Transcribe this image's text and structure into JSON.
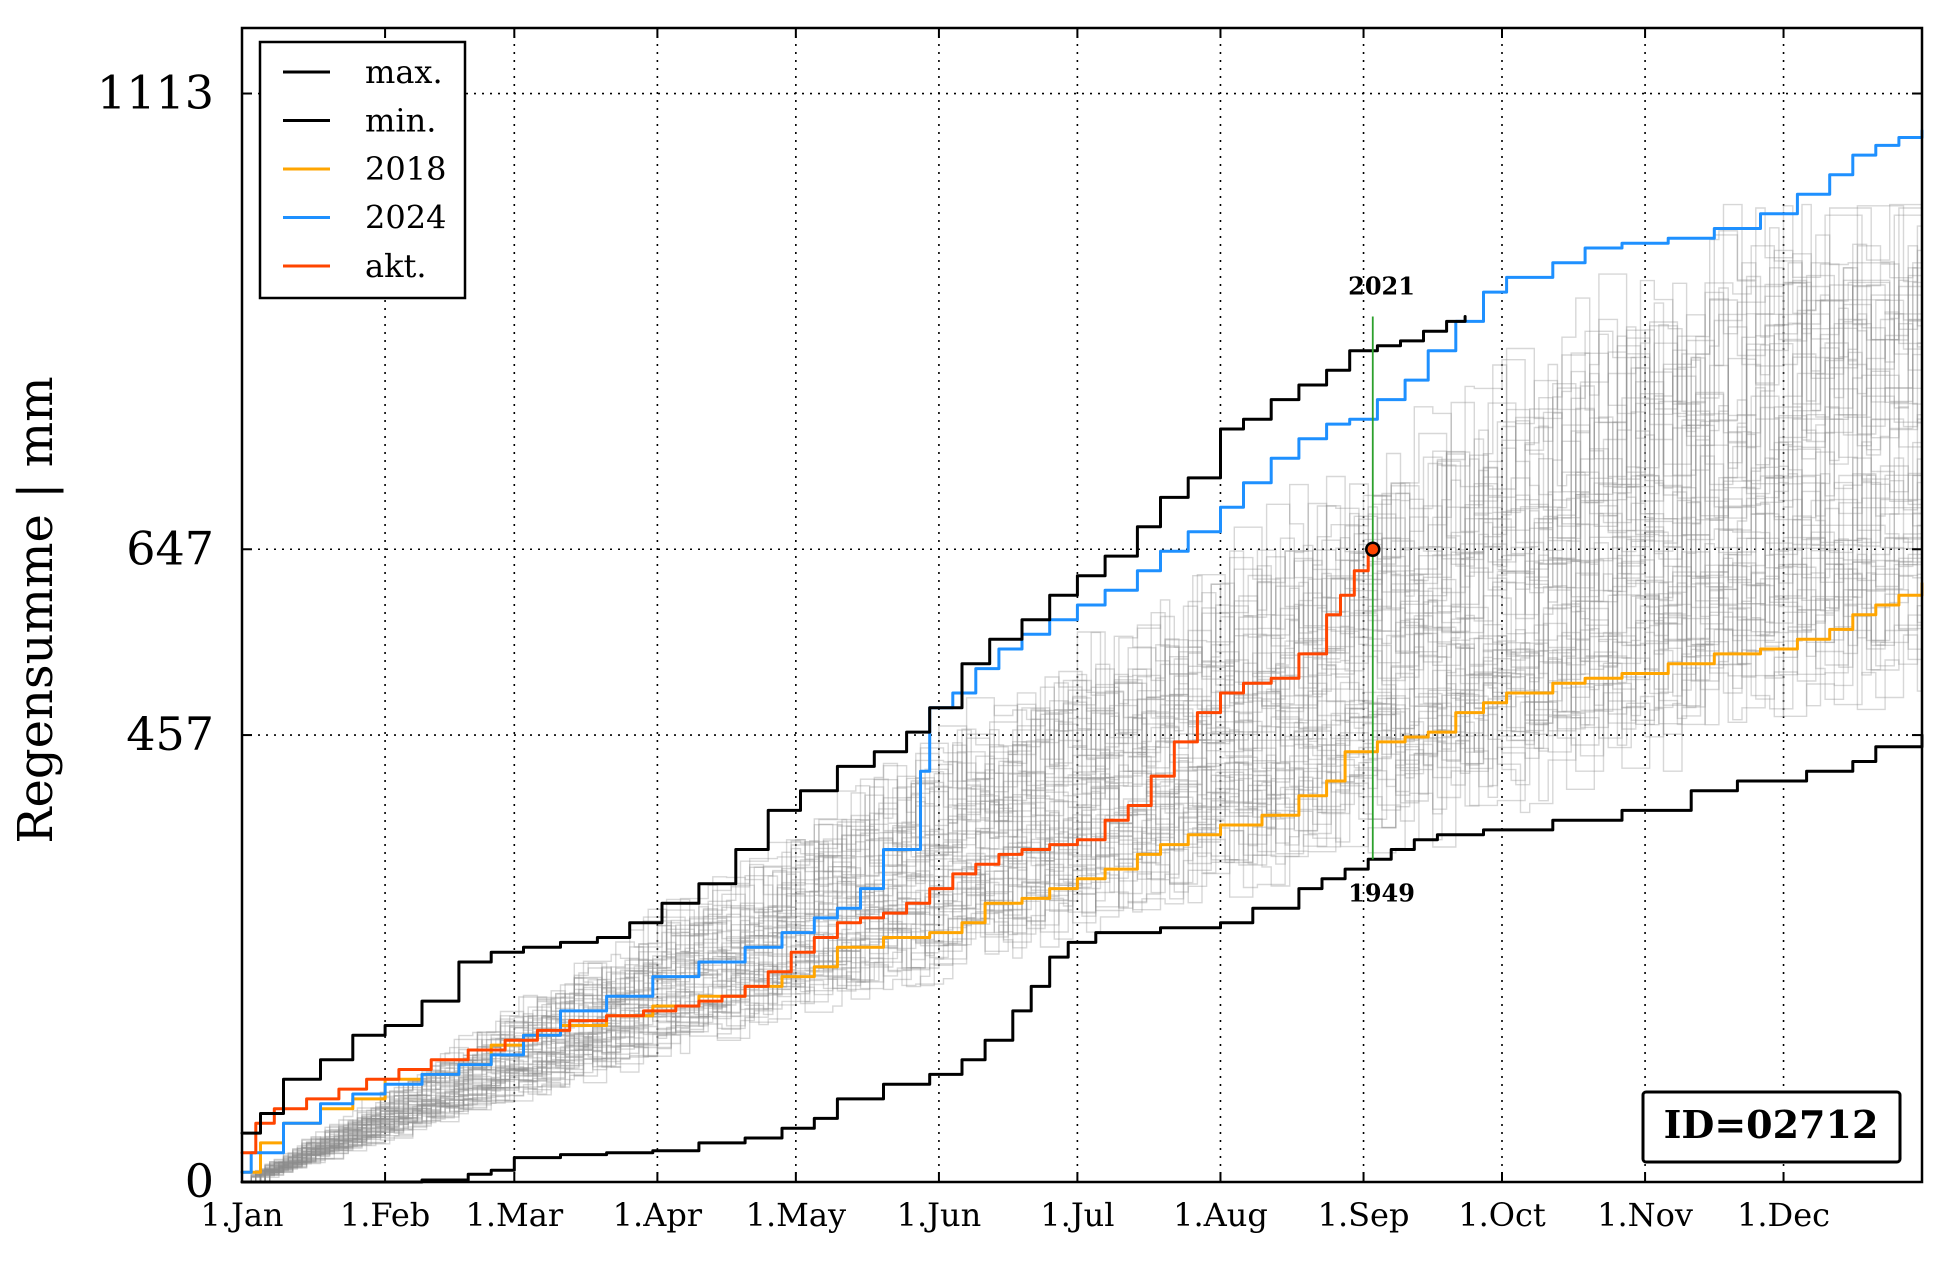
{
  "chart_data": {
    "type": "line",
    "ylabel": "Regensumme | mm",
    "x_unit": "day of year",
    "xlim": [
      1,
      365
    ],
    "ylim": [
      0,
      1180
    ],
    "grid": true,
    "legend_position": "top-left",
    "x_ticks": [
      {
        "label": "1.Jan",
        "day": 1
      },
      {
        "label": "1.Feb",
        "day": 32
      },
      {
        "label": "1.Mar",
        "day": 60
      },
      {
        "label": "1.Apr",
        "day": 91
      },
      {
        "label": "1.May",
        "day": 121
      },
      {
        "label": "1.Jun",
        "day": 152
      },
      {
        "label": "1.Jul",
        "day": 182
      },
      {
        "label": "1.Aug",
        "day": 213
      },
      {
        "label": "1.Sep",
        "day": 244
      },
      {
        "label": "1.Oct",
        "day": 274
      },
      {
        "label": "1.Nov",
        "day": 305
      },
      {
        "label": "1.Dec",
        "day": 335
      }
    ],
    "y_ticks": [
      {
        "label": "0",
        "value": 0
      },
      {
        "label": "457",
        "value": 457
      },
      {
        "label": "647",
        "value": 647
      },
      {
        "label": "1113",
        "value": 1113
      }
    ],
    "series": [
      {
        "name": "max.",
        "color": "#000000",
        "width": 3,
        "x": [
          1,
          5,
          10,
          18,
          25,
          32,
          40,
          48,
          55,
          62,
          70,
          78,
          85,
          92,
          100,
          108,
          115,
          122,
          130,
          138,
          145,
          150,
          157,
          163,
          170,
          176,
          182,
          188,
          195,
          200,
          206,
          213,
          218,
          224,
          230,
          236,
          241,
          247,
          252,
          257,
          262,
          266
        ],
        "y": [
          50,
          70,
          105,
          125,
          150,
          160,
          185,
          225,
          235,
          240,
          245,
          250,
          265,
          285,
          305,
          340,
          380,
          400,
          425,
          440,
          460,
          485,
          530,
          555,
          575,
          600,
          620,
          640,
          670,
          700,
          720,
          770,
          780,
          800,
          815,
          830,
          850,
          855,
          860,
          870,
          880,
          885
        ]
      },
      {
        "name": "min.",
        "color": "#000000",
        "width": 3,
        "x": [
          1,
          30,
          40,
          50,
          55,
          60,
          70,
          80,
          90,
          100,
          110,
          118,
          125,
          130,
          140,
          150,
          157,
          162,
          168,
          172,
          176,
          180,
          186,
          200,
          213,
          220,
          230,
          235,
          240,
          245,
          250,
          255,
          260,
          270,
          285,
          300,
          315,
          325,
          340,
          350,
          355,
          365
        ],
        "y": [
          0,
          0,
          2,
          8,
          12,
          25,
          28,
          30,
          32,
          40,
          45,
          55,
          65,
          85,
          100,
          110,
          125,
          145,
          175,
          200,
          230,
          245,
          255,
          260,
          265,
          280,
          300,
          310,
          320,
          330,
          340,
          350,
          355,
          360,
          370,
          380,
          400,
          410,
          420,
          430,
          445,
          457
        ]
      },
      {
        "name": "2018",
        "color": "#ffa500",
        "width": 3,
        "x": [
          1,
          5,
          10,
          18,
          25,
          32,
          40,
          48,
          55,
          62,
          70,
          80,
          90,
          100,
          110,
          118,
          125,
          130,
          140,
          150,
          157,
          162,
          170,
          176,
          182,
          188,
          195,
          200,
          206,
          213,
          222,
          230,
          236,
          240,
          247,
          253,
          258,
          264,
          270,
          275,
          285,
          292,
          300,
          310,
          320,
          330,
          338,
          345,
          350,
          355,
          360,
          365
        ],
        "y": [
          10,
          40,
          60,
          75,
          85,
          105,
          110,
          120,
          140,
          150,
          160,
          170,
          180,
          190,
          200,
          210,
          220,
          240,
          250,
          255,
          265,
          285,
          290,
          300,
          310,
          320,
          335,
          345,
          355,
          365,
          375,
          395,
          410,
          440,
          450,
          455,
          460,
          480,
          490,
          500,
          510,
          515,
          520,
          530,
          540,
          545,
          555,
          565,
          580,
          590,
          600,
          612
        ]
      },
      {
        "name": "2024",
        "color": "#1e90ff",
        "width": 3,
        "x": [
          1,
          3,
          10,
          18,
          25,
          32,
          40,
          48,
          55,
          62,
          70,
          80,
          90,
          100,
          110,
          118,
          125,
          130,
          135,
          140,
          148,
          150,
          155,
          160,
          165,
          170,
          176,
          182,
          188,
          195,
          200,
          206,
          213,
          218,
          224,
          230,
          236,
          241,
          247,
          253,
          258,
          264,
          270,
          275,
          285,
          292,
          300,
          310,
          320,
          330,
          338,
          345,
          350,
          355,
          360,
          365
        ],
        "y": [
          10,
          30,
          60,
          80,
          90,
          100,
          110,
          120,
          130,
          150,
          175,
          190,
          210,
          225,
          240,
          255,
          270,
          280,
          300,
          340,
          420,
          485,
          500,
          525,
          545,
          560,
          575,
          590,
          605,
          625,
          645,
          665,
          690,
          715,
          740,
          760,
          775,
          780,
          800,
          820,
          850,
          880,
          910,
          925,
          940,
          955,
          960,
          965,
          975,
          990,
          1010,
          1030,
          1050,
          1060,
          1068,
          1075
        ]
      },
      {
        "name": "akt.",
        "color": "#ff4500",
        "width": 3,
        "x": [
          1,
          4,
          8,
          15,
          22,
          28,
          35,
          42,
          50,
          58,
          65,
          72,
          80,
          88,
          95,
          100,
          105,
          110,
          115,
          120,
          125,
          130,
          135,
          140,
          145,
          150,
          155,
          160,
          165,
          170,
          176,
          182,
          188,
          193,
          198,
          203,
          208,
          213,
          218,
          224,
          230,
          236,
          239,
          242,
          245
        ],
        "y": [
          30,
          60,
          75,
          85,
          95,
          105,
          115,
          125,
          135,
          145,
          155,
          165,
          170,
          175,
          180,
          185,
          190,
          200,
          215,
          235,
          250,
          265,
          270,
          275,
          285,
          300,
          315,
          325,
          335,
          340,
          345,
          350,
          370,
          385,
          415,
          450,
          480,
          500,
          510,
          515,
          540,
          580,
          600,
          625,
          647
        ]
      }
    ],
    "climatology_line_count": 60,
    "marker": {
      "x": 246,
      "y": 647,
      "color": "#ff4500"
    },
    "annotations": [
      {
        "text": "2021",
        "x": 244,
        "y": 885,
        "position": "above"
      },
      {
        "text": "1949",
        "x": 244,
        "y": 330,
        "position": "below"
      }
    ],
    "vertical_marker": {
      "x": 246,
      "y_from": 330,
      "y_to": 885,
      "color": "#2ca02c"
    },
    "reference_lines": [
      457,
      647,
      1113
    ],
    "id_box": "ID=02712"
  }
}
